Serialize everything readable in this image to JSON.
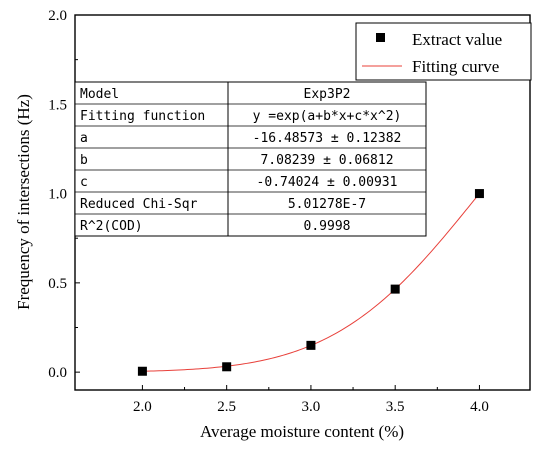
{
  "chart_data": {
    "type": "scatter",
    "xlabel": "Average moisture content (%)",
    "ylabel": "Frequency of intersections (Hz)",
    "xlim": [
      1.6,
      4.3
    ],
    "ylim": [
      -0.1,
      2.0
    ],
    "xticks": [
      "2.0",
      "2.5",
      "3.0",
      "3.5",
      "4.0"
    ],
    "xtick_values": [
      2.0,
      2.5,
      3.0,
      3.5,
      4.0
    ],
    "yticks": [
      "0.0",
      "0.5",
      "1.0",
      "1.5",
      "2.0"
    ],
    "ytick_values": [
      0.0,
      0.5,
      1.0,
      1.5,
      2.0
    ],
    "series": [
      {
        "name": "Extract value",
        "kind": "scatter",
        "color": "#000000",
        "x": [
          2.0,
          2.5,
          3.0,
          3.5,
          4.0
        ],
        "y": [
          0.005,
          0.03,
          0.15,
          0.465,
          1.0
        ]
      },
      {
        "name": "Fitting curve",
        "kind": "line",
        "color": "#e8403a",
        "function": "exp",
        "params": {
          "a": -16.48573,
          "b": 7.08239,
          "c": -0.74024
        },
        "x_range": [
          2.0,
          4.0
        ]
      }
    ],
    "legend": {
      "position": "top-right",
      "entries": [
        "Extract value",
        "Fitting curve"
      ]
    },
    "fit_table": {
      "position": "top-left",
      "rows": [
        [
          "Model",
          "Exp3P2"
        ],
        [
          "Fitting function",
          "y =exp(a+b*x+c*x^2)"
        ],
        [
          "a",
          "-16.48573 ± 0.12382"
        ],
        [
          "b",
          "7.08239 ± 0.06812"
        ],
        [
          "c",
          "-0.74024 ± 0.00931"
        ],
        [
          "Reduced Chi-Sqr",
          "5.01278E-7"
        ],
        [
          "R^2(COD)",
          "0.9998"
        ]
      ]
    },
    "grid": false
  }
}
